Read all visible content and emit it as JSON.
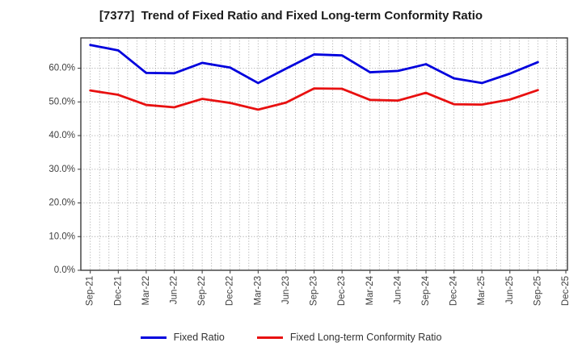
{
  "title": "[7377]  Trend of Fixed Ratio and Fixed Long-term Conformity Ratio",
  "colors": {
    "fixed_ratio": "#0000dd",
    "fixed_long_term": "#e81010",
    "grid": "#9a9a9a",
    "axis_text": "#3f3f3f"
  },
  "chart_data": {
    "type": "line",
    "title": "[7377]  Trend of Fixed Ratio and Fixed Long-term Conformity Ratio",
    "categories": [
      "Sep-21",
      "Dec-21",
      "Mar-22",
      "Jun-22",
      "Sep-22",
      "Dec-22",
      "Mar-23",
      "Jun-23",
      "Sep-23",
      "Dec-23",
      "Mar-24",
      "Jun-24",
      "Sep-24",
      "Dec-24",
      "Mar-25",
      "Jun-25",
      "Sep-25",
      "Dec-25"
    ],
    "series": [
      {
        "name": "Fixed Ratio",
        "color": "#0000dd",
        "values": [
          66.9,
          65.3,
          58.6,
          58.5,
          61.6,
          60.2,
          55.6,
          59.9,
          64.1,
          63.8,
          58.8,
          59.2,
          61.2,
          57.0,
          55.6,
          58.4,
          61.8,
          null
        ]
      },
      {
        "name": "Fixed Long-term Conformity Ratio",
        "color": "#e81010",
        "values": [
          53.4,
          52.1,
          49.1,
          48.4,
          50.9,
          49.7,
          47.7,
          49.8,
          54.0,
          53.9,
          50.6,
          50.4,
          52.7,
          49.3,
          49.2,
          50.7,
          53.5,
          null
        ]
      }
    ],
    "xlabel": "",
    "ylabel": "",
    "ylim": [
      0,
      69
    ],
    "ytick_values": [
      0,
      10,
      20,
      30,
      40,
      50,
      60
    ],
    "ytick_labels": [
      "0.0%",
      "10.0%",
      "20.0%",
      "30.0%",
      "40.0%",
      "50.0%",
      "60.0%"
    ],
    "grid": true,
    "minor_x_divisions": 3,
    "legend_position": "bottom"
  }
}
